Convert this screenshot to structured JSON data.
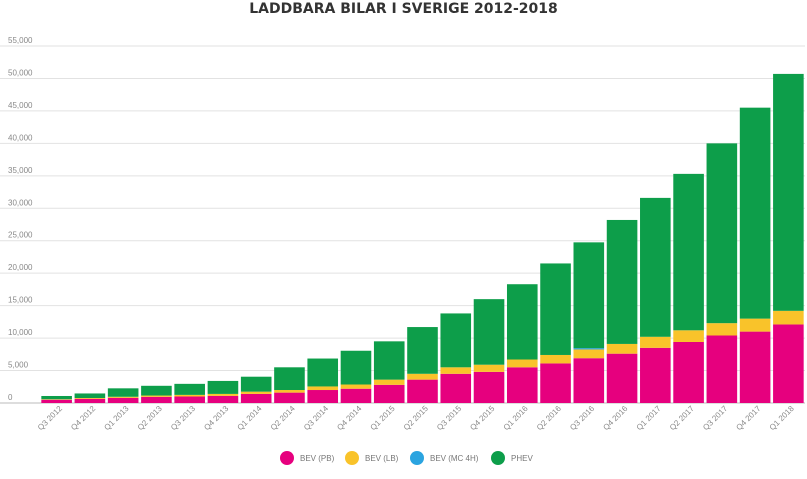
{
  "chart_data": {
    "type": "bar",
    "stacked": true,
    "title": "LADDBARA BILAR I SVERIGE 2012-2018",
    "xlabel": "",
    "ylabel": "",
    "ylim": [
      0,
      55000
    ],
    "yticks": [
      0,
      5000,
      10000,
      15000,
      20000,
      25000,
      30000,
      35000,
      40000,
      45000,
      50000,
      55000
    ],
    "ytick_labels": [
      "0",
      "5,000",
      "10,000",
      "15,000",
      "20,000",
      "25,000",
      "30,000",
      "35,000",
      "40,000",
      "45,000",
      "50,000",
      "55,000"
    ],
    "grid": true,
    "legend_position": "bottom",
    "categories": [
      "Q3 2012",
      "Q4 2012",
      "Q1 2013",
      "Q2 2013",
      "Q3 2013",
      "Q4 2013",
      "Q1 2014",
      "Q2 2014",
      "Q3 2014",
      "Q4 2014",
      "Q1 2015",
      "Q2 2015",
      "Q3 2015",
      "Q4 2015",
      "Q1 2016",
      "Q2 2016",
      "Q3 2016",
      "Q4 2016",
      "Q1 2017",
      "Q2 2017",
      "Q3 2017",
      "Q4 2017",
      "Q1 2018"
    ],
    "series": [
      {
        "name": "BEV (PB)",
        "color": "#e6007e",
        "values": [
          500,
          650,
          800,
          950,
          1000,
          1100,
          1400,
          1600,
          2000,
          2200,
          2800,
          3600,
          4500,
          4800,
          5500,
          6100,
          6900,
          7600,
          8500,
          9400,
          10400,
          11000,
          12100
        ]
      },
      {
        "name": "BEV (LB)",
        "color": "#f9c32a",
        "values": [
          80,
          120,
          160,
          200,
          250,
          300,
          350,
          400,
          550,
          650,
          800,
          900,
          1000,
          1100,
          1200,
          1300,
          1350,
          1500,
          1700,
          1800,
          1900,
          2000,
          2100
        ]
      },
      {
        "name": "BEV (MC 4H)",
        "color": "#2ba4e0",
        "values": [
          0,
          0,
          0,
          0,
          0,
          0,
          0,
          0,
          0,
          0,
          0,
          0,
          0,
          0,
          0,
          0,
          200,
          0,
          0,
          0,
          0,
          0,
          0
        ]
      },
      {
        "name": "PHEV",
        "color": "#0d9e4a",
        "values": [
          500,
          700,
          1300,
          1500,
          1700,
          2000,
          2300,
          3500,
          4300,
          5200,
          5900,
          7200,
          8300,
          10100,
          11600,
          14100,
          16300,
          19100,
          21400,
          24100,
          27700,
          32500,
          36500
        ]
      }
    ]
  }
}
